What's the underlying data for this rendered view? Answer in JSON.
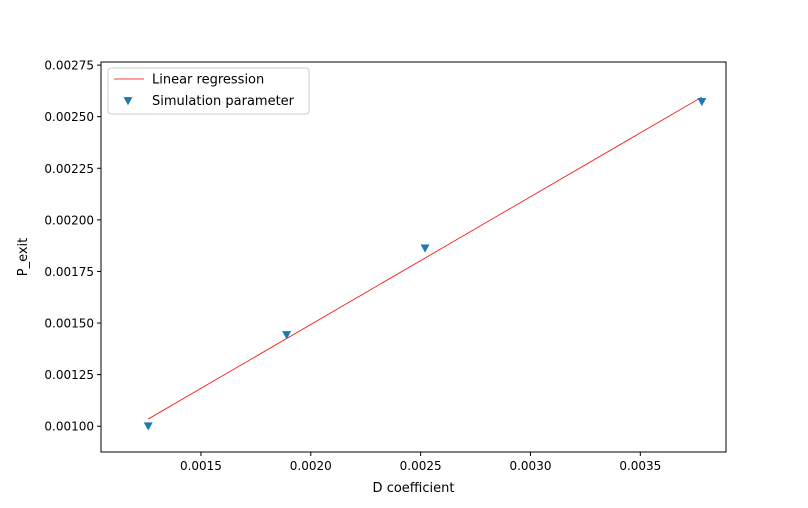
{
  "chart_data": {
    "type": "scatter",
    "xlabel": "D coefficient",
    "ylabel": "P_exit",
    "xlim": [
      0.001045,
      0.00389
    ],
    "ylim": [
      0.000875,
      0.002765
    ],
    "x_ticks": [
      0.0015,
      0.002,
      0.0025,
      0.003,
      0.0035
    ],
    "x_tick_labels": [
      "0.0015",
      "0.0020",
      "0.0025",
      "0.0030",
      "0.0035"
    ],
    "y_ticks": [
      0.001,
      0.00125,
      0.0015,
      0.00175,
      0.002,
      0.00225,
      0.0025,
      0.00275
    ],
    "y_tick_labels": [
      "0.00100",
      "0.00125",
      "0.00150",
      "0.00175",
      "0.00200",
      "0.00225",
      "0.00250",
      "0.00275"
    ],
    "grid": false,
    "legend_position": "top-left",
    "series": [
      {
        "name": "Linear regression",
        "kind": "line",
        "color": "#ff0000",
        "x": [
          0.00126,
          0.00378
        ],
        "y": [
          0.001035,
          0.002595
        ]
      },
      {
        "name": "Simulation parameter",
        "kind": "scatter",
        "marker": "triangle-down",
        "color": "#1f77b4",
        "x": [
          0.00126,
          0.00189,
          0.00252,
          0.00378
        ],
        "y": [
          0.001,
          0.001442,
          0.001862,
          0.002572
        ]
      }
    ]
  }
}
